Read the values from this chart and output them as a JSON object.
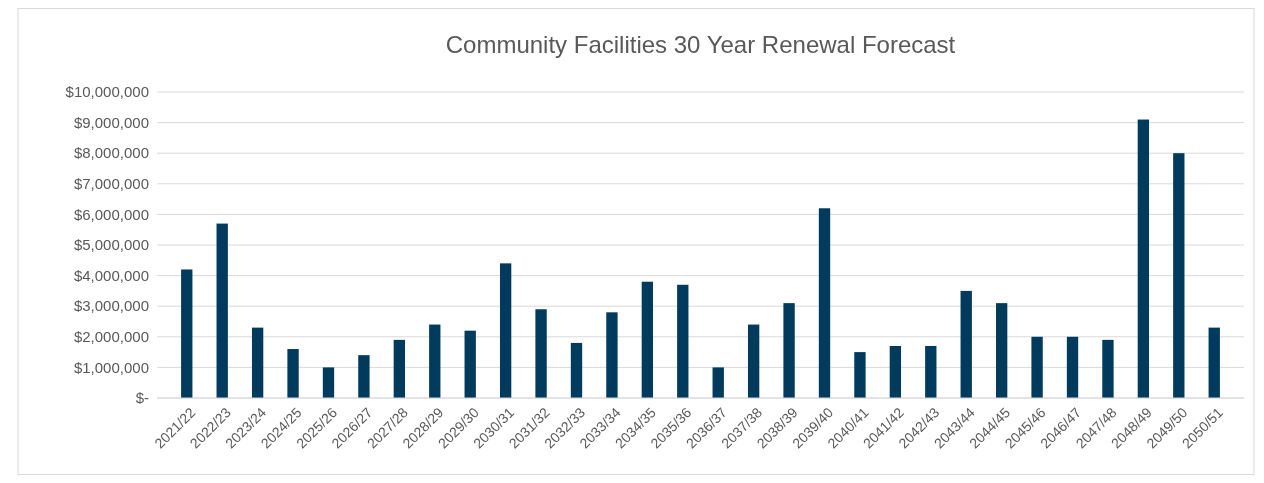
{
  "chart_data": {
    "type": "bar",
    "title": "Community Facilities 30 Year Renewal Forecast",
    "categories": [
      "2021/22",
      "2022/23",
      "2023/24",
      "2024/25",
      "2025/26",
      "2026/27",
      "2027/28",
      "2028/29",
      "2029/30",
      "2030/31",
      "2031/32",
      "2032/33",
      "2033/34",
      "2034/35",
      "2035/36",
      "2036/37",
      "2037/38",
      "2038/39",
      "2039/40",
      "2040/41",
      "2041/42",
      "2042/43",
      "2043/44",
      "2044/45",
      "2045/46",
      "2046/47",
      "2047/48",
      "2048/49",
      "2049/50",
      "2050/51"
    ],
    "values": [
      4200000,
      5700000,
      2300000,
      1600000,
      1000000,
      1400000,
      1900000,
      2400000,
      2200000,
      4400000,
      2900000,
      1800000,
      2800000,
      3800000,
      3700000,
      1000000,
      2400000,
      3100000,
      6200000,
      1500000,
      1700000,
      1700000,
      3500000,
      3100000,
      2000000,
      2000000,
      1900000,
      9100000,
      8000000,
      2300000
    ],
    "color": "#003a5d",
    "ylim": [
      0,
      10000000
    ],
    "yticks": [
      {
        "value": 0,
        "label": "$-"
      },
      {
        "value": 1000000,
        "label": "$1,000,000"
      },
      {
        "value": 2000000,
        "label": "$2,000,000"
      },
      {
        "value": 3000000,
        "label": "$3,000,000"
      },
      {
        "value": 4000000,
        "label": "$4,000,000"
      },
      {
        "value": 5000000,
        "label": "$5,000,000"
      },
      {
        "value": 6000000,
        "label": "$6,000,000"
      },
      {
        "value": 7000000,
        "label": "$7,000,000"
      },
      {
        "value": 8000000,
        "label": "$8,000,000"
      },
      {
        "value": 9000000,
        "label": "$9,000,000"
      },
      {
        "value": 10000000,
        "label": "$10,000,000"
      }
    ],
    "grid": "y"
  }
}
